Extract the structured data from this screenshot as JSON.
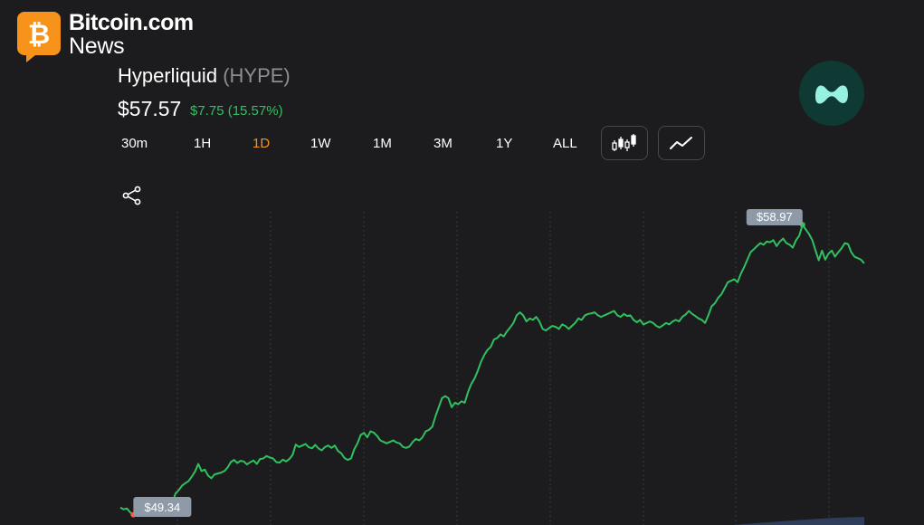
{
  "brand": {
    "line1": "Bitcoin.com",
    "line2": "News"
  },
  "coin": {
    "name": "Hyperliquid",
    "ticker": "(HYPE)",
    "price": "$57.57",
    "change": "$7.75 (15.57%)"
  },
  "timeframes": [
    "30m",
    "1H",
    "1D",
    "1W",
    "1M",
    "3M",
    "1Y",
    "ALL"
  ],
  "active_timeframe": "1D",
  "icons": {
    "candlestick": "candlestick-icon",
    "line": "line-chart-icon",
    "share": "share-icon"
  },
  "colors": {
    "line": "#30c060",
    "active": "#f7931a",
    "background": "#1c1c1e",
    "min_marker": "#ff5a3c"
  },
  "chart_data": {
    "type": "line",
    "series": [
      {
        "values": [
          49.58,
          49.52,
          49.55,
          49.42,
          49.34,
          49.41,
          49.46,
          49.52,
          49.44,
          49.55,
          49.62,
          49.58,
          49.67,
          49.62,
          49.55,
          49.62,
          49.74,
          50.05,
          50.16,
          50.31,
          50.39,
          50.46,
          50.61,
          50.78,
          51.03,
          50.79,
          50.84,
          50.64,
          50.55,
          50.68,
          50.71,
          50.74,
          50.79,
          50.91,
          51.09,
          51.16,
          51.06,
          51.13,
          51.11,
          51.01,
          51.09,
          51.14,
          51.03,
          51.19,
          51.21,
          51.29,
          51.24,
          51.21,
          51.09,
          51.07,
          51.17,
          51.11,
          51.19,
          51.32,
          51.67,
          51.59,
          51.64,
          51.69,
          51.58,
          51.55,
          51.66,
          51.54,
          51.48,
          51.59,
          51.64,
          51.56,
          51.64,
          51.46,
          51.38,
          51.22,
          51.16,
          51.21,
          51.51,
          51.71,
          51.99,
          52.06,
          51.91,
          52.11,
          52.07,
          51.96,
          51.81,
          51.76,
          51.71,
          51.76,
          51.81,
          51.74,
          51.71,
          51.59,
          51.56,
          51.61,
          51.76,
          51.86,
          51.81,
          51.91,
          52.11,
          52.16,
          52.26,
          52.61,
          52.91,
          53.21,
          53.28,
          53.21,
          52.91,
          53.06,
          53.01,
          53.11,
          53.06,
          53.41,
          53.68,
          53.86,
          54.11,
          54.41,
          54.64,
          54.81,
          54.91,
          55.16,
          55.21,
          55.33,
          55.26,
          55.43,
          55.56,
          55.71,
          55.96,
          56.06,
          55.96,
          55.76,
          55.86,
          55.81,
          55.91,
          55.76,
          55.51,
          55.46,
          55.54,
          55.61,
          55.58,
          55.51,
          55.66,
          55.61,
          55.51,
          55.61,
          55.71,
          55.86,
          55.81,
          55.96,
          56.01,
          56.03,
          56.06,
          55.96,
          55.91,
          55.96,
          56.01,
          56.06,
          56.11,
          55.96,
          55.91,
          56.01,
          55.94,
          55.96,
          55.81,
          55.73,
          55.81,
          55.66,
          55.71,
          55.76,
          55.71,
          55.61,
          55.56,
          55.63,
          55.71,
          55.66,
          55.76,
          55.81,
          55.76,
          55.91,
          55.99,
          56.11,
          56.01,
          55.94,
          55.86,
          55.81,
          55.71,
          55.96,
          56.26,
          56.36,
          56.54,
          56.66,
          56.86,
          57.06,
          57.11,
          57.16,
          57.06,
          57.34,
          57.56,
          57.81,
          58.06,
          58.16,
          58.26,
          58.36,
          58.31,
          58.41,
          58.39,
          58.46,
          58.26,
          58.41,
          58.51,
          58.36,
          58.31,
          58.21,
          58.46,
          58.61,
          58.97,
          58.81,
          58.66,
          58.46,
          58.11,
          57.79,
          58.11,
          57.81,
          58.01,
          58.11,
          57.91,
          58.06,
          58.19,
          58.36,
          58.33,
          58.06,
          57.91,
          57.86,
          57.81,
          57.69
        ],
        "min": 49.34,
        "max": 58.97
      }
    ],
    "ylim": [
      49.0,
      59.4
    ]
  }
}
